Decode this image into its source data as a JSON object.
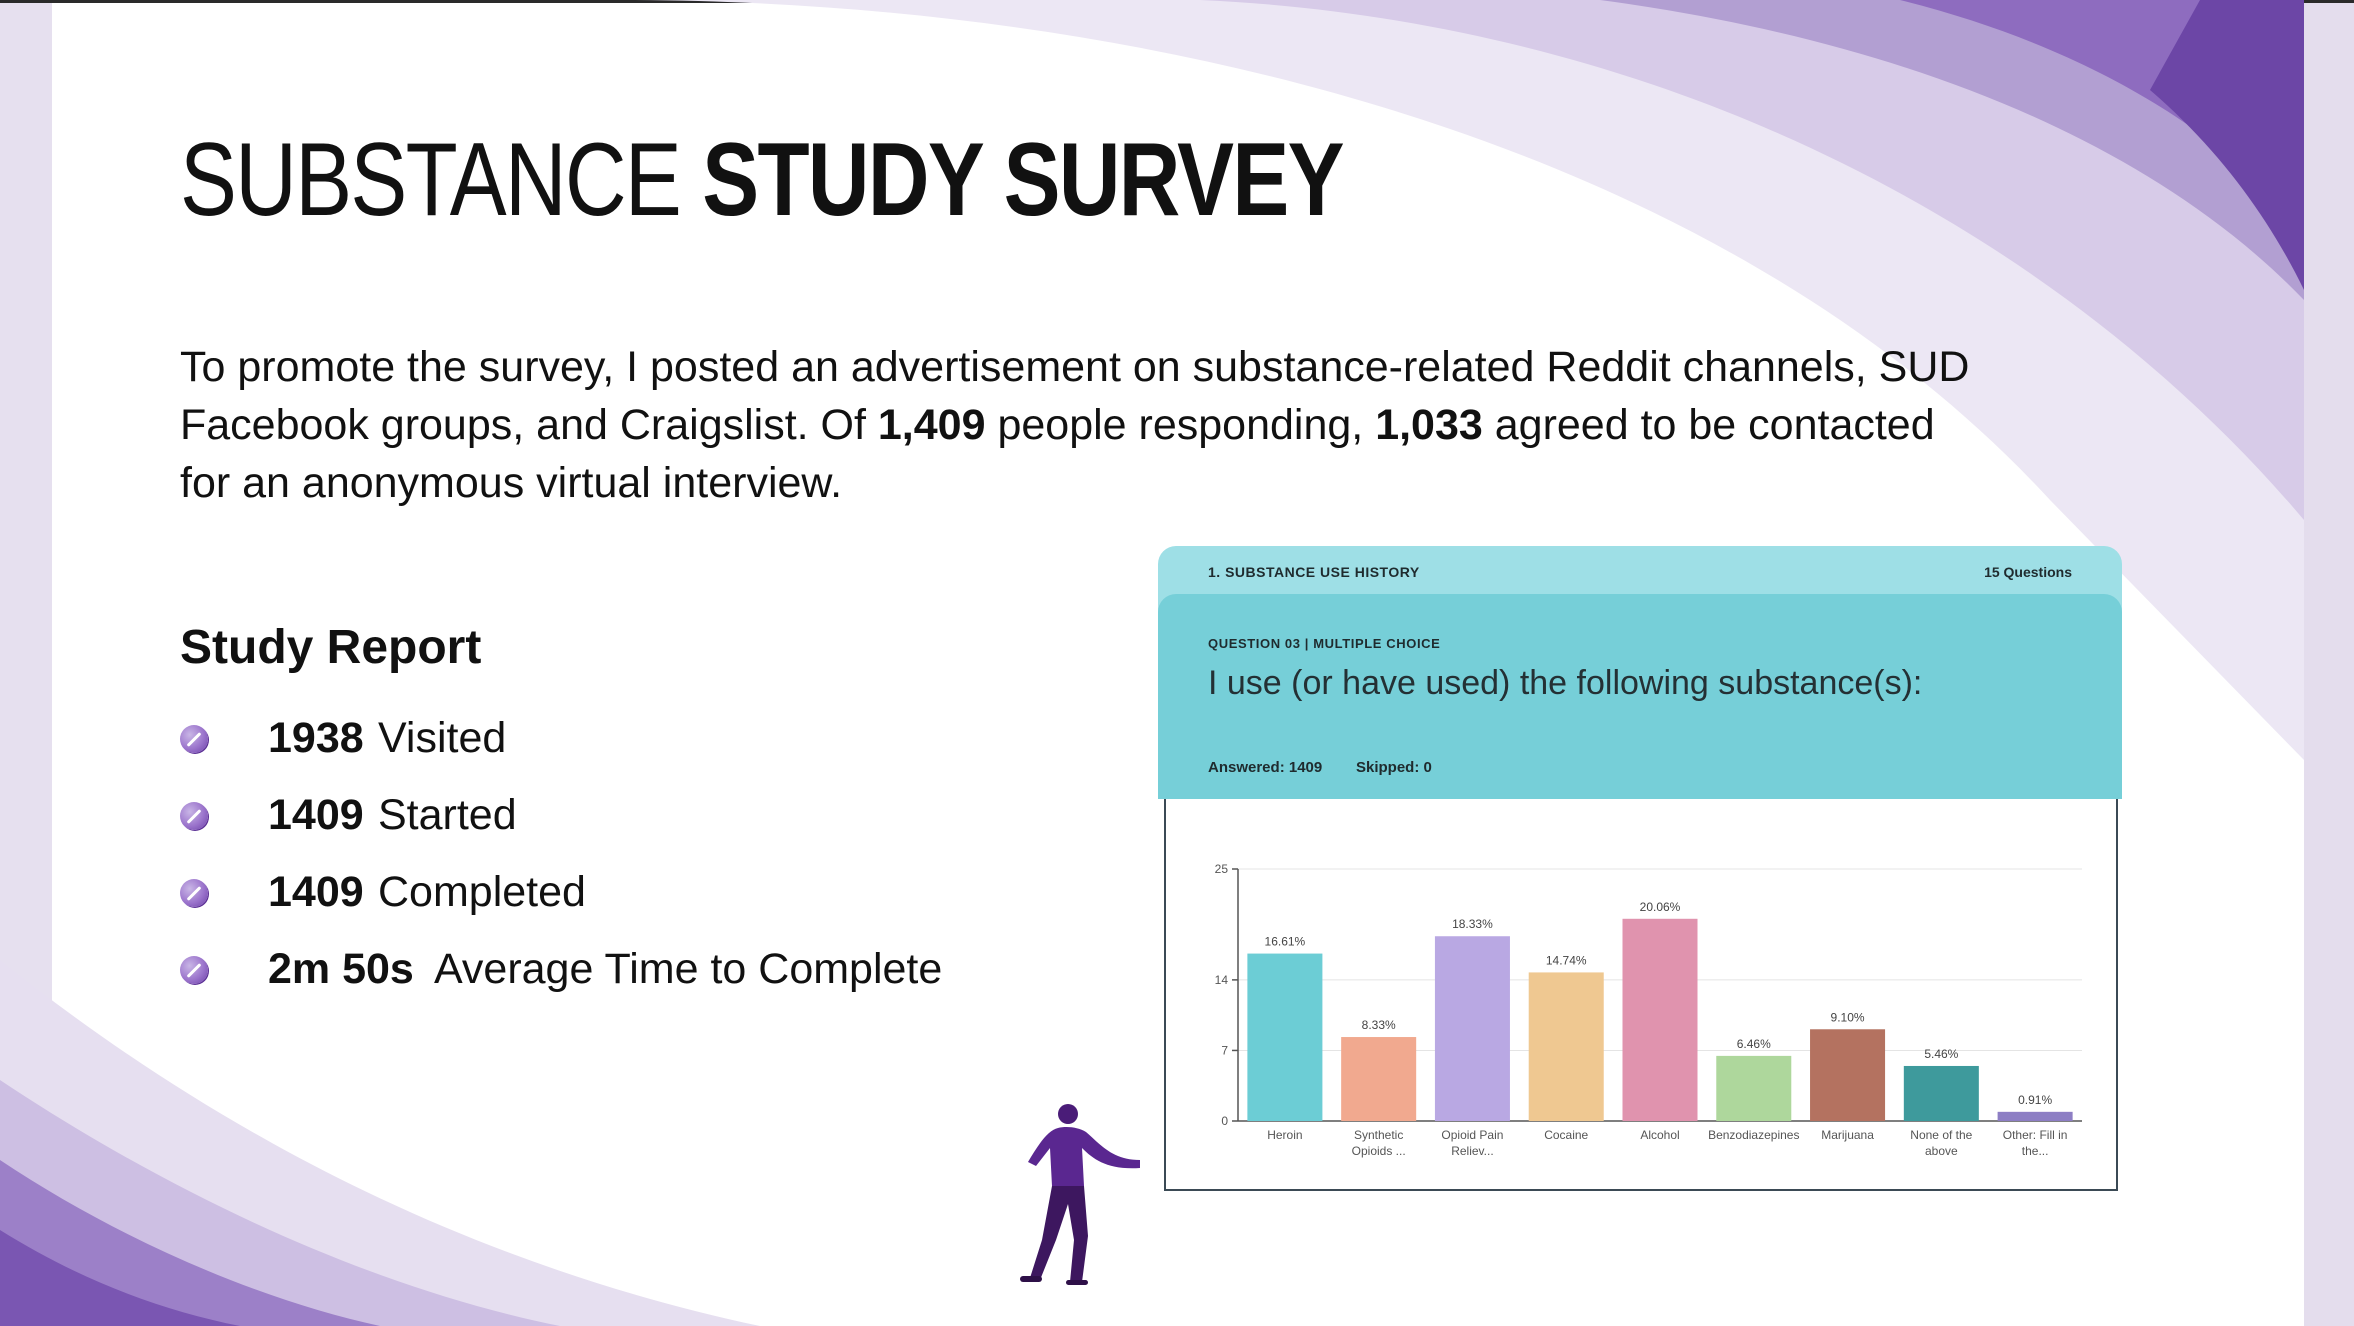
{
  "slide": {
    "title_light": "SUBSTANCE",
    "title_bold": "STUDY SURVEY",
    "intro": {
      "part1": "To promote the survey, I posted an advertisement on substance-related Reddit channels, SUD Facebook groups, and Craigslist. Of ",
      "responding_count": "1,409",
      "part2": " people responding, ",
      "agreed_count": "1,033",
      "part3": " agreed to be contacted for an anonymous virtual interview."
    },
    "report": {
      "heading": "Study Report",
      "items": [
        {
          "value": "1938",
          "label": "Visited"
        },
        {
          "value": "1409",
          "label": "Started"
        },
        {
          "value": "1409",
          "label": "Completed"
        },
        {
          "value": "2m 50s",
          "label": "Average Time to Complete"
        }
      ]
    }
  },
  "survey": {
    "section_label": "1. SUBSTANCE USE HISTORY",
    "question_count": "15 Questions",
    "question_meta": "QUESTION 03 | MULTIPLE CHOICE",
    "question_text": "I use (or have used) the following substance(s):",
    "answered": "Answered: 1409",
    "skipped": "Skipped: 0"
  },
  "colors": {
    "accent_purple": "#6a3fa6",
    "card_header": "#9edfe6",
    "question_panel": "#76cfd8"
  },
  "chart_data": {
    "type": "bar",
    "title": "",
    "xlabel": "",
    "ylabel": "",
    "ylim": [
      0,
      25
    ],
    "yticks": [
      0,
      7,
      14,
      25
    ],
    "grid": true,
    "categories": [
      [
        "Heroin"
      ],
      [
        "Synthetic",
        "Opioids ..."
      ],
      [
        "Opioid Pain",
        "Reliev..."
      ],
      [
        "Cocaine"
      ],
      [
        "Alcohol"
      ],
      [
        "Benzodiazepines"
      ],
      [
        "Marijuana"
      ],
      [
        "None of the",
        "above"
      ],
      [
        "Other: Fill in",
        "the..."
      ]
    ],
    "values": [
      16.61,
      8.33,
      18.33,
      14.74,
      20.06,
      6.46,
      9.1,
      5.46,
      0.91
    ],
    "labels": [
      "16.61%",
      "8.33%",
      "18.33%",
      "14.74%",
      "20.06%",
      "6.46%",
      "9.10%",
      "5.46%",
      "0.91%"
    ],
    "colors": [
      "#6ccdd5",
      "#f1a98f",
      "#b9a8e3",
      "#efc891",
      "#e093ae",
      "#aed79c",
      "#b47260",
      "#3e9a9c",
      "#8d7ec4"
    ]
  }
}
